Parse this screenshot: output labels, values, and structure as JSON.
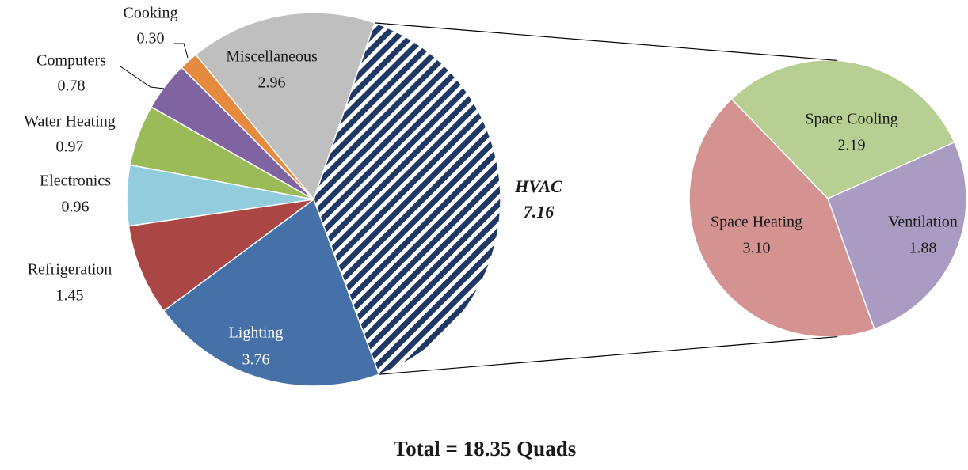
{
  "chart_data": [
    {
      "type": "pie",
      "title": "Total = 18.35 Quads",
      "categories": [
        "HVAC",
        "Lighting",
        "Refrigeration",
        "Electronics",
        "Water Heating",
        "Computers",
        "Cooking",
        "Miscellaneous"
      ],
      "values": [
        7.16,
        3.76,
        1.45,
        0.96,
        0.97,
        0.78,
        0.3,
        2.96
      ],
      "value_labels": [
        "7.16",
        "3.76",
        "1.45",
        "0.96",
        "0.97",
        "0.78",
        "0.30",
        "2.96"
      ],
      "colors": [
        "#203864",
        "#4571a8",
        "#aa4643",
        "#93cddd",
        "#9bbb59",
        "#8064a2",
        "#e58a3e",
        "#bfbfbf"
      ]
    },
    {
      "type": "pie",
      "categories": [
        "Space Cooling",
        "Ventilation",
        "Space Heating"
      ],
      "values": [
        2.19,
        1.88,
        3.1
      ],
      "value_labels": [
        "2.19",
        "1.88",
        "3.10"
      ],
      "colors": [
        "#b8cf93",
        "#a99bc1",
        "#d49391"
      ]
    }
  ]
}
